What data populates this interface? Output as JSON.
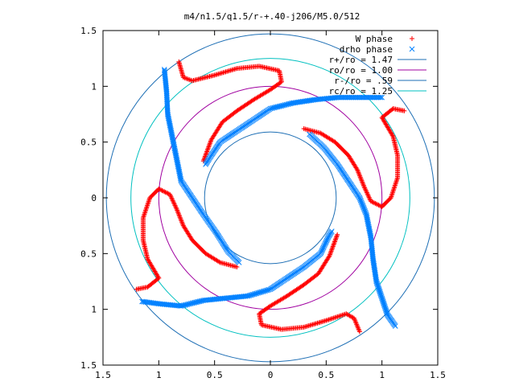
{
  "chart_data": {
    "type": "scatter",
    "title": "m4/n1.5/q1.5/r-+.40-j206/M5.0/512",
    "xlabel": "",
    "ylabel": "",
    "xlim": [
      -1.5,
      1.5
    ],
    "ylim": [
      -1.5,
      1.5
    ],
    "x_tick_labels": [
      "1.5",
      "1",
      "0.5",
      "0",
      "0.5",
      "1",
      "1.5"
    ],
    "y_tick_labels": [
      "1.5",
      "1",
      "0.5",
      "0",
      "0.5",
      "1",
      "1.5"
    ],
    "grid": false,
    "legend_position": "top-right",
    "legend": [
      {
        "label": "W phase",
        "type": "points",
        "marker": "+",
        "color": "#ff0000"
      },
      {
        "label": "drho phase",
        "type": "points",
        "marker": "x",
        "color": "#0080ff"
      },
      {
        "label": "r+/ro = 1.47",
        "type": "line",
        "color": "#1e6fb5"
      },
      {
        "label": "ro/ro = 1.00",
        "type": "line",
        "color": "#a000a0"
      },
      {
        "label": "r-/ro = .59",
        "type": "line",
        "color": "#1e6fb5"
      },
      {
        "label": "rc/ro = 1.25",
        "type": "line",
        "color": "#00c0c0"
      }
    ],
    "circles": [
      {
        "name": "r+/ro = 1.47",
        "r": 1.47,
        "color": "#1e6fb5"
      },
      {
        "name": "ro/ro = 1.00",
        "r": 1.0,
        "color": "#a000a0"
      },
      {
        "name": "r-/ro = .59",
        "r": 0.59,
        "color": "#1e6fb5"
      },
      {
        "name": "rc/ro = 1.25",
        "r": 1.25,
        "color": "#00c0c0"
      }
    ],
    "series": [
      {
        "name": "W phase",
        "marker": "+",
        "color": "#ff0000",
        "arms": [
          [
            [
              -0.82,
              1.22
            ],
            [
              -0.78,
              1.08
            ],
            [
              -0.7,
              1.05
            ],
            [
              -0.5,
              1.1
            ],
            [
              -0.3,
              1.16
            ],
            [
              -0.1,
              1.18
            ],
            [
              0.08,
              1.14
            ],
            [
              0.1,
              1.04
            ],
            [
              0.0,
              0.97
            ],
            [
              -0.15,
              0.88
            ],
            [
              -0.3,
              0.78
            ],
            [
              -0.43,
              0.68
            ],
            [
              -0.53,
              0.52
            ],
            [
              -0.6,
              0.33
            ]
          ],
          [
            [
              1.2,
              0.78
            ],
            [
              1.1,
              0.8
            ],
            [
              1.0,
              0.72
            ],
            [
              1.1,
              0.55
            ],
            [
              1.14,
              0.38
            ],
            [
              1.14,
              0.18
            ],
            [
              1.08,
              0.0
            ],
            [
              1.0,
              -0.08
            ],
            [
              0.9,
              -0.03
            ],
            [
              0.84,
              0.1
            ],
            [
              0.78,
              0.25
            ],
            [
              0.7,
              0.38
            ],
            [
              0.58,
              0.5
            ],
            [
              0.45,
              0.58
            ],
            [
              0.3,
              0.62
            ]
          ],
          [
            [
              0.8,
              -1.2
            ],
            [
              0.75,
              -1.08
            ],
            [
              0.68,
              -1.04
            ],
            [
              0.5,
              -1.1
            ],
            [
              0.3,
              -1.16
            ],
            [
              0.1,
              -1.18
            ],
            [
              -0.08,
              -1.14
            ],
            [
              -0.1,
              -1.04
            ],
            [
              0.0,
              -0.97
            ],
            [
              0.15,
              -0.88
            ],
            [
              0.3,
              -0.78
            ],
            [
              0.43,
              -0.68
            ],
            [
              0.53,
              -0.52
            ],
            [
              0.6,
              -0.33
            ]
          ],
          [
            [
              -1.2,
              -0.82
            ],
            [
              -1.1,
              -0.8
            ],
            [
              -1.0,
              -0.72
            ],
            [
              -1.1,
              -0.55
            ],
            [
              -1.14,
              -0.38
            ],
            [
              -1.14,
              -0.18
            ],
            [
              -1.08,
              0.0
            ],
            [
              -1.0,
              0.08
            ],
            [
              -0.9,
              0.03
            ],
            [
              -0.84,
              -0.1
            ],
            [
              -0.78,
              -0.25
            ],
            [
              -0.7,
              -0.38
            ],
            [
              -0.58,
              -0.5
            ],
            [
              -0.45,
              -0.58
            ],
            [
              -0.3,
              -0.62
            ]
          ]
        ]
      },
      {
        "name": "drho phase",
        "marker": "x",
        "color": "#0080ff",
        "arms": [
          [
            [
              -0.95,
              1.15
            ],
            [
              -0.93,
              0.95
            ],
            [
              -0.92,
              0.75
            ],
            [
              -0.88,
              0.55
            ],
            [
              -0.84,
              0.35
            ],
            [
              -0.8,
              0.15
            ],
            [
              -0.7,
              0.0
            ],
            [
              -0.6,
              -0.15
            ],
            [
              -0.48,
              -0.32
            ],
            [
              -0.38,
              -0.48
            ],
            [
              -0.28,
              -0.58
            ]
          ],
          [
            [
              1.12,
              -1.15
            ],
            [
              1.05,
              -1.05
            ],
            [
              1.0,
              -0.9
            ],
            [
              0.95,
              -0.75
            ],
            [
              0.92,
              -0.55
            ],
            [
              0.9,
              -0.35
            ],
            [
              0.86,
              -0.15
            ],
            [
              0.8,
              0.0
            ],
            [
              0.7,
              0.15
            ],
            [
              0.6,
              0.3
            ],
            [
              0.48,
              0.45
            ],
            [
              0.35,
              0.57
            ]
          ],
          [
            [
              1.0,
              0.9
            ],
            [
              0.8,
              0.9
            ],
            [
              0.6,
              0.9
            ],
            [
              0.4,
              0.88
            ],
            [
              0.2,
              0.85
            ],
            [
              0.0,
              0.8
            ],
            [
              -0.15,
              0.7
            ],
            [
              -0.3,
              0.6
            ],
            [
              -0.45,
              0.5
            ],
            [
              -0.55,
              0.35
            ],
            [
              -0.58,
              0.3
            ]
          ],
          [
            [
              -1.15,
              -0.93
            ],
            [
              -1.0,
              -0.95
            ],
            [
              -0.8,
              -0.97
            ],
            [
              -0.6,
              -0.92
            ],
            [
              -0.4,
              -0.9
            ],
            [
              -0.2,
              -0.88
            ],
            [
              0.0,
              -0.82
            ],
            [
              0.15,
              -0.72
            ],
            [
              0.3,
              -0.62
            ],
            [
              0.45,
              -0.5
            ],
            [
              0.52,
              -0.35
            ],
            [
              0.55,
              -0.3
            ]
          ]
        ]
      }
    ]
  }
}
